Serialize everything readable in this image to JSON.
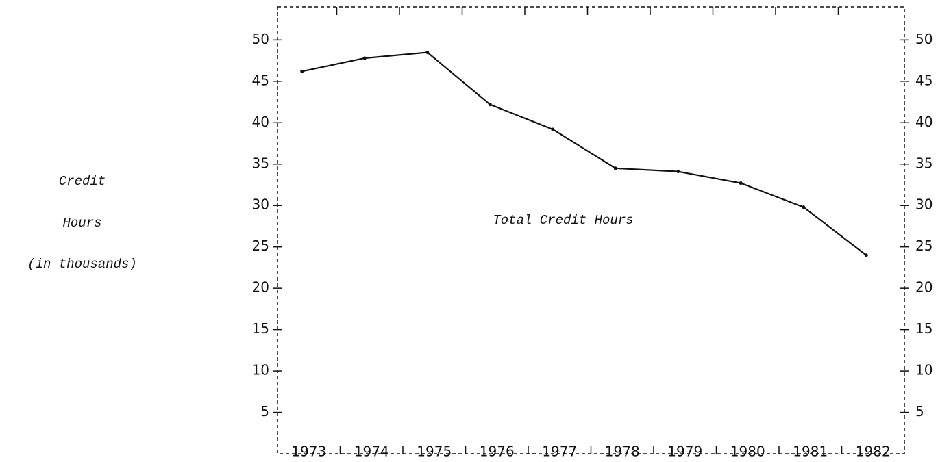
{
  "chart_data": {
    "type": "line",
    "y_label": [
      "Credit",
      "Hours",
      "(in thousands)"
    ],
    "annotation": "Total Credit Hours",
    "categories": [
      "1973",
      "1974",
      "1975",
      "1976",
      "1977",
      "1978",
      "1979",
      "1980",
      "1981",
      "1982"
    ],
    "series": [
      {
        "name": "Total Credit Hours",
        "color": "#111111",
        "values": [
          46.2,
          47.8,
          48.5,
          42.2,
          39.2,
          34.5,
          34.1,
          32.7,
          29.8,
          24.0
        ]
      }
    ],
    "ylim": [
      0,
      54
    ],
    "yticks": [
      5,
      10,
      15,
      20,
      25,
      30,
      35,
      40,
      45,
      50
    ],
    "grid": false
  }
}
